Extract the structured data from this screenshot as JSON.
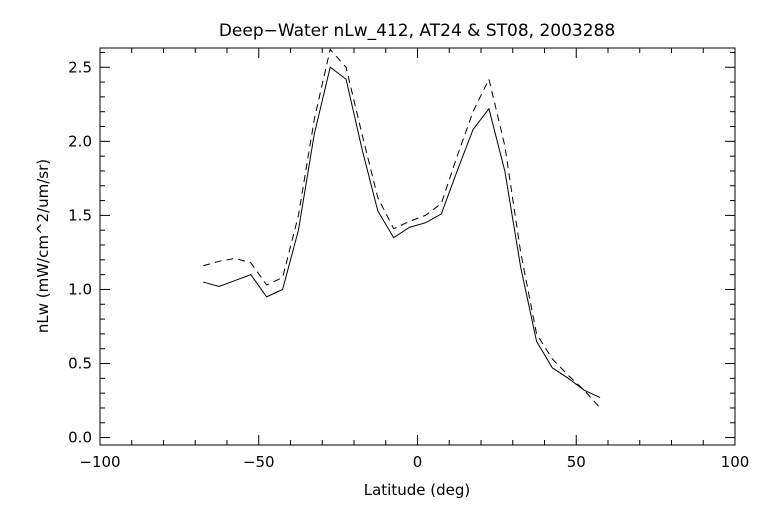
{
  "chart_data": {
    "type": "line",
    "title": "Deep−Water nLw_412, AT24 & ST08, 2003288",
    "xlabel": "Latitude (deg)",
    "ylabel": "nLw (mW/cm^2/um/sr)",
    "xlim": [
      -100,
      100
    ],
    "ylim": [
      -0.05,
      2.63
    ],
    "xticks": [
      -100,
      -50,
      0,
      50,
      100
    ],
    "xtick_labels": [
      "−100",
      "−50",
      "0",
      "50",
      "100"
    ],
    "yticks": [
      0,
      0.5,
      1,
      1.5,
      2,
      2.5
    ],
    "ytick_labels": [
      "0.0",
      "0.5",
      "1.0",
      "1.5",
      "2.0",
      "2.5"
    ],
    "grid": false,
    "series": [
      {
        "name": "solid",
        "style": "solid",
        "x": [
          -67.5,
          -62.5,
          -57.5,
          -52.5,
          -47.5,
          -42.5,
          -37.5,
          -32.5,
          -27.5,
          -22.5,
          -17.5,
          -12.5,
          -7.5,
          -2.5,
          2.5,
          7.5,
          12.5,
          17.5,
          22.5,
          27.5,
          32.5,
          37.5,
          42.5,
          47.5,
          52.5,
          57.5
        ],
        "y": [
          1.05,
          1.02,
          1.06,
          1.1,
          0.95,
          1.0,
          1.4,
          2.05,
          2.5,
          2.42,
          1.95,
          1.53,
          1.35,
          1.42,
          1.45,
          1.51,
          1.8,
          2.08,
          2.22,
          1.8,
          1.15,
          0.65,
          0.47,
          0.4,
          0.32,
          0.27
        ]
      },
      {
        "name": "dashed",
        "style": "dashed",
        "x": [
          -67.5,
          -62.5,
          -57.5,
          -52.5,
          -47.5,
          -42.5,
          -37.5,
          -32.5,
          -27.5,
          -22.5,
          -17.5,
          -12.5,
          -7.5,
          -2.5,
          2.5,
          7.5,
          12.5,
          17.5,
          22.5,
          27.5,
          32.5,
          37.5,
          42.5,
          47.5,
          52.5,
          57.5
        ],
        "y": [
          1.16,
          1.19,
          1.21,
          1.18,
          1.03,
          1.08,
          1.5,
          2.15,
          2.62,
          2.5,
          2.05,
          1.62,
          1.41,
          1.46,
          1.5,
          1.58,
          1.9,
          2.2,
          2.42,
          1.97,
          1.25,
          0.7,
          0.53,
          0.42,
          0.32,
          0.2
        ]
      }
    ]
  }
}
